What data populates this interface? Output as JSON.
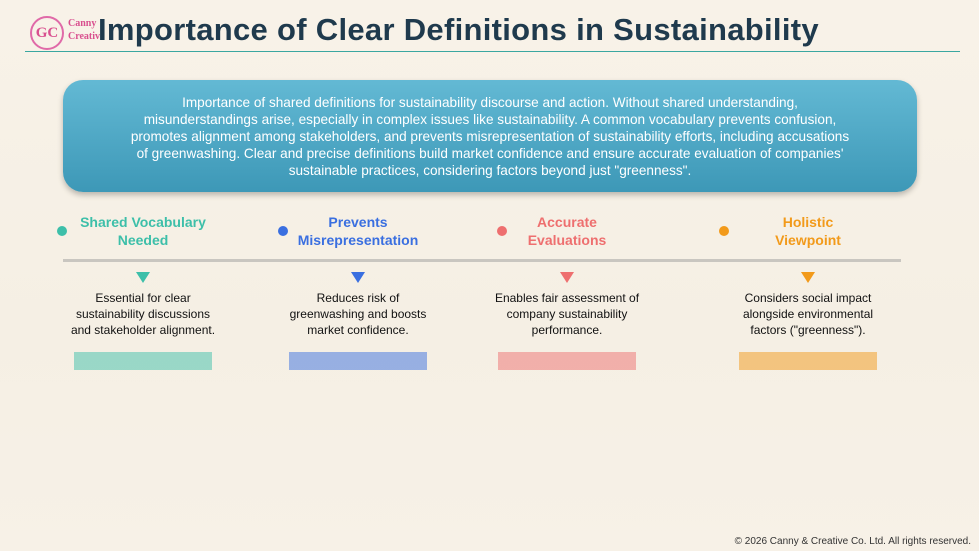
{
  "header": {
    "logo_mark": "GC",
    "logo_words": [
      "Canny",
      "Creative"
    ],
    "title": "Importance of Clear Definitions in Sustainability"
  },
  "summary": {
    "lines": [
      "Importance of shared definitions for sustainability discourse and action. Without shared understanding,",
      "misunderstandings arise, especially in complex issues like sustainability. A common vocabulary prevents confusion,",
      "promotes alignment among stakeholders, and prevents misrepresentation of sustainability efforts, including accusations",
      "of greenwashing. Clear and precise definitions build market confidence and ensure accurate evaluation of companies'",
      "sustainable practices, considering factors beyond just \"greenness\"."
    ]
  },
  "items": [
    {
      "title_lines": [
        "Shared Vocabulary",
        "Needed"
      ],
      "description_lines": [
        "Essential for clear",
        "sustainability discussions",
        "and stakeholder alignment."
      ],
      "color": "#3dbfa9"
    },
    {
      "title_lines": [
        "Prevents",
        "Misrepresentation"
      ],
      "description_lines": [
        "Reduces risk of",
        "greenwashing and boosts",
        "market confidence."
      ],
      "color": "#3a6fe0"
    },
    {
      "title_lines": [
        "Accurate",
        "Evaluations"
      ],
      "description_lines": [
        "Enables fair assessment of",
        "company sustainability",
        "performance."
      ],
      "color": "#ee6f6f"
    },
    {
      "title_lines": [
        "Holistic",
        "Viewpoint"
      ],
      "description_lines": [
        "Considers social impact",
        "alongside environmental",
        "factors (\"greenness\")."
      ],
      "color": "#f29a1a"
    }
  ],
  "footer": {
    "copyright": "© 2026 Canny & Creative Co. Ltd. All rights reserved."
  }
}
